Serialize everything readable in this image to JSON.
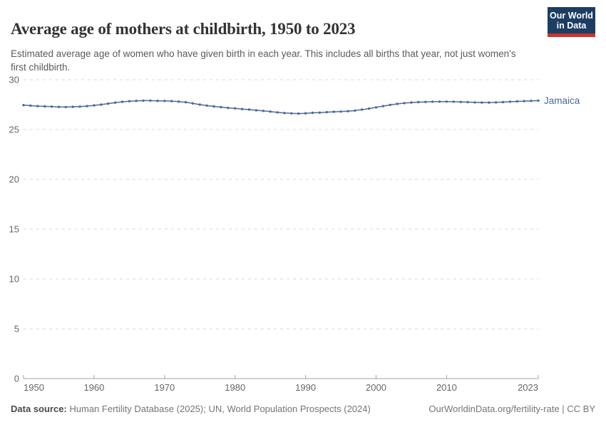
{
  "header": {
    "title": "Average age of mothers at childbirth, 1950 to 2023",
    "subtitle": "Estimated average age of women who have given birth in each year. This includes all births that year, not just women's first childbirth."
  },
  "logo": {
    "line1": "Our World",
    "line2": "in Data",
    "bg_color": "#1d3d63",
    "accent_color": "#cb342f",
    "text_color": "#ffffff"
  },
  "chart_data": {
    "type": "line",
    "title": "Average age of mothers at childbirth, 1950 to 2023",
    "xlabel": "",
    "ylabel": "",
    "xlim": [
      1950,
      2023
    ],
    "ylim": [
      0,
      30
    ],
    "xticks": [
      1950,
      1960,
      1970,
      1980,
      1990,
      2000,
      2010,
      2023
    ],
    "yticks": [
      0,
      5,
      10,
      15,
      20,
      25,
      30
    ],
    "grid": "dashed-horizontal-gridlines",
    "legend_position": "end-of-line-label",
    "colors": {
      "grid": "#dadada",
      "axis": "#a3a3a3",
      "tick_label": "#666666"
    },
    "series": [
      {
        "name": "Jamaica",
        "color": "#4c6a9c",
        "x": [
          1950,
          1951,
          1952,
          1953,
          1954,
          1955,
          1956,
          1957,
          1958,
          1959,
          1960,
          1961,
          1962,
          1963,
          1964,
          1965,
          1966,
          1967,
          1968,
          1969,
          1970,
          1971,
          1972,
          1973,
          1974,
          1975,
          1976,
          1977,
          1978,
          1979,
          1980,
          1981,
          1982,
          1983,
          1984,
          1985,
          1986,
          1987,
          1988,
          1989,
          1990,
          1991,
          1992,
          1993,
          1994,
          1995,
          1996,
          1997,
          1998,
          1999,
          2000,
          2001,
          2002,
          2003,
          2004,
          2005,
          2006,
          2007,
          2008,
          2009,
          2010,
          2011,
          2012,
          2013,
          2014,
          2015,
          2016,
          2017,
          2018,
          2019,
          2020,
          2021,
          2022,
          2023
        ],
        "values": [
          27.45,
          27.4,
          27.35,
          27.32,
          27.3,
          27.27,
          27.26,
          27.28,
          27.3,
          27.35,
          27.42,
          27.5,
          27.6,
          27.7,
          27.78,
          27.84,
          27.88,
          27.9,
          27.9,
          27.88,
          27.87,
          27.85,
          27.8,
          27.74,
          27.62,
          27.5,
          27.4,
          27.32,
          27.25,
          27.17,
          27.12,
          27.06,
          27.0,
          26.93,
          26.87,
          26.8,
          26.72,
          26.66,
          26.62,
          26.6,
          26.63,
          26.68,
          26.7,
          26.74,
          26.78,
          26.8,
          26.84,
          26.9,
          27.0,
          27.1,
          27.22,
          27.35,
          27.47,
          27.57,
          27.65,
          27.71,
          27.75,
          27.77,
          27.79,
          27.8,
          27.8,
          27.79,
          27.77,
          27.75,
          27.72,
          27.71,
          27.71,
          27.72,
          27.75,
          27.79,
          27.82,
          27.85,
          27.88,
          27.9
        ]
      }
    ]
  },
  "footer": {
    "source_label": "Data source:",
    "source_text": "Human Fertility Database (2025); UN, World Population Prospects (2024)",
    "link_text": "OurWorldinData.org/fertility-rate | CC BY"
  }
}
